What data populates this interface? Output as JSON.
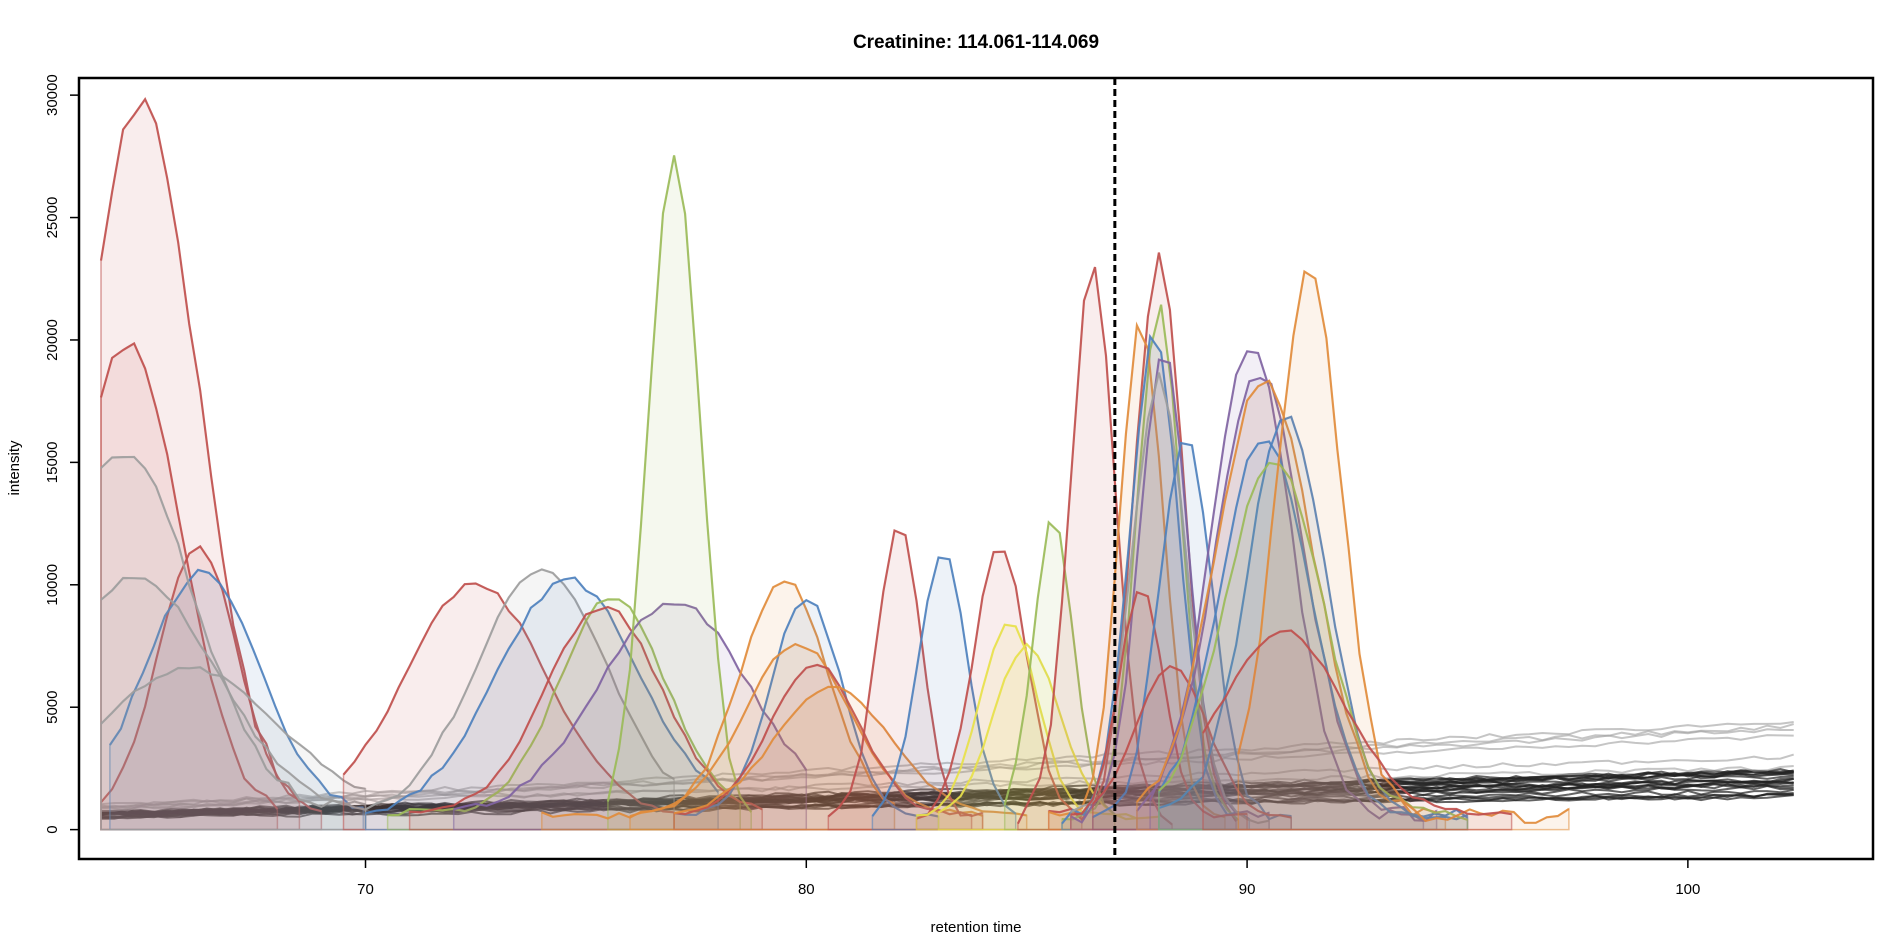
{
  "chart_data": {
    "type": "area",
    "title": "Creatinine: 114.061-114.069",
    "xlabel": "retention time",
    "ylabel": "intensity",
    "xlim": [
      63.5,
      104.2
    ],
    "ylim": [
      -1200,
      30700
    ],
    "x_ticks": [
      70,
      80,
      90,
      100
    ],
    "y_ticks": [
      0,
      5000,
      10000,
      15000,
      20000,
      25000,
      30000
    ],
    "grid": false,
    "legend": "none",
    "vline": {
      "x": 87.0,
      "style": "dashed",
      "color": "#000000"
    },
    "baseline_x_range": [
      64.0,
      102.5
    ],
    "peaks": [
      {
        "color": "#c0504d",
        "x_range": [
          64.0,
          68.5
        ],
        "center": 64.9,
        "width": 1.3,
        "height": 29200,
        "floor": 600
      },
      {
        "color": "#c0504d",
        "x_range": [
          64.0,
          68.0
        ],
        "center": 64.6,
        "width": 1.2,
        "height": 19200,
        "floor": 700
      },
      {
        "color": "#c0504d",
        "x_range": [
          64.0,
          69.0
        ],
        "center": 66.2,
        "width": 0.9,
        "height": 10800,
        "floor": 700
      },
      {
        "color": "#4f81bd",
        "x_range": [
          64.2,
          70.0
        ],
        "center": 66.3,
        "width": 1.3,
        "height": 9800,
        "floor": 700
      },
      {
        "color": "#9e9e9e",
        "x_range": [
          64.0,
          70.0
        ],
        "center": 64.5,
        "width": 1.6,
        "height": 14500,
        "floor": 800
      },
      {
        "color": "#9e9e9e",
        "x_range": [
          64.0,
          70.0
        ],
        "center": 64.8,
        "width": 1.8,
        "height": 9500,
        "floor": 800
      },
      {
        "color": "#9e9e9e",
        "x_range": [
          64.0,
          70.0
        ],
        "center": 66.0,
        "width": 2.0,
        "height": 5800,
        "floor": 800
      },
      {
        "color": "#c0504d",
        "x_range": [
          69.5,
          77.0
        ],
        "center": 72.5,
        "width": 1.6,
        "height": 9400,
        "floor": 600
      },
      {
        "color": "#9e9e9e",
        "x_range": [
          70.0,
          77.0
        ],
        "center": 74.0,
        "width": 1.5,
        "height": 10000,
        "floor": 600
      },
      {
        "color": "#4f81bd",
        "x_range": [
          70.0,
          78.0
        ],
        "center": 74.6,
        "width": 1.6,
        "height": 9600,
        "floor": 600
      },
      {
        "color": "#9bbb59",
        "x_range": [
          70.5,
          78.5
        ],
        "center": 75.6,
        "width": 1.2,
        "height": 8800,
        "floor": 700
      },
      {
        "color": "#c0504d",
        "x_range": [
          71.0,
          79.0
        ],
        "center": 75.4,
        "width": 1.3,
        "height": 8400,
        "floor": 700
      },
      {
        "color": "#8064a2",
        "x_range": [
          72.0,
          80.0
        ],
        "center": 77.0,
        "width": 1.7,
        "height": 8600,
        "floor": 700
      },
      {
        "color": "#9bbb59",
        "x_range": [
          75.5,
          78.8
        ],
        "center": 77.0,
        "width": 0.58,
        "height": 27200,
        "floor": 500
      },
      {
        "color": "#e08c3c",
        "x_range": [
          74.0,
          82.0
        ],
        "center": 79.5,
        "width": 1.0,
        "height": 9600,
        "floor": 600
      },
      {
        "color": "#4f81bd",
        "x_range": [
          77.0,
          83.0
        ],
        "center": 80.0,
        "width": 0.8,
        "height": 8900,
        "floor": 600
      },
      {
        "color": "#e08c3c",
        "x_range": [
          76.0,
          84.0
        ],
        "center": 79.8,
        "width": 1.2,
        "height": 7000,
        "floor": 600
      },
      {
        "color": "#c0504d",
        "x_range": [
          77.0,
          84.0
        ],
        "center": 80.2,
        "width": 1.0,
        "height": 6200,
        "floor": 600
      },
      {
        "color": "#e08c3c",
        "x_range": [
          77.0,
          85.0
        ],
        "center": 80.6,
        "width": 1.3,
        "height": 5200,
        "floor": 600
      },
      {
        "color": "#c0504d",
        "x_range": [
          80.5,
          83.8
        ],
        "center": 82.1,
        "width": 0.5,
        "height": 12000,
        "floor": 500
      },
      {
        "color": "#4f81bd",
        "x_range": [
          81.5,
          84.8
        ],
        "center": 83.1,
        "width": 0.55,
        "height": 10800,
        "floor": 500
      },
      {
        "color": "#c0504d",
        "x_range": [
          82.5,
          86.3
        ],
        "center": 84.4,
        "width": 0.6,
        "height": 11100,
        "floor": 500
      },
      {
        "color": "#e8e04a",
        "x_range": [
          82.5,
          87.5
        ],
        "center": 84.6,
        "width": 0.65,
        "height": 8000,
        "floor": 500
      },
      {
        "color": "#e8e04a",
        "x_range": [
          83.0,
          88.0
        ],
        "center": 85.0,
        "width": 0.75,
        "height": 7000,
        "floor": 500
      },
      {
        "color": "#9bbb59",
        "x_range": [
          84.5,
          87.0
        ],
        "center": 85.6,
        "width": 0.45,
        "height": 12300,
        "floor": 500
      },
      {
        "color": "#c0504d",
        "x_range": [
          84.8,
          88.3
        ],
        "center": 86.5,
        "width": 0.5,
        "height": 22600,
        "floor": 500
      },
      {
        "color": "#c0504d",
        "x_range": [
          85.5,
          89.8
        ],
        "center": 88.0,
        "width": 0.55,
        "height": 23000,
        "floor": 500
      },
      {
        "color": "#9bbb59",
        "x_range": [
          85.8,
          90.0
        ],
        "center": 88.0,
        "width": 0.5,
        "height": 21000,
        "floor": 500
      },
      {
        "color": "#e08c3c",
        "x_range": [
          85.5,
          89.5
        ],
        "center": 87.6,
        "width": 0.5,
        "height": 20200,
        "floor": 500
      },
      {
        "color": "#4f81bd",
        "x_range": [
          85.8,
          90.2
        ],
        "center": 87.9,
        "width": 0.55,
        "height": 19800,
        "floor": 500
      },
      {
        "color": "#8064a2",
        "x_range": [
          86.0,
          90.5
        ],
        "center": 88.1,
        "width": 0.55,
        "height": 19000,
        "floor": 500
      },
      {
        "color": "#9e9e9e",
        "x_range": [
          86.0,
          90.5
        ],
        "center": 88.0,
        "width": 0.6,
        "height": 18000,
        "floor": 500
      },
      {
        "color": "#c0504d",
        "x_range": [
          86.0,
          90.0
        ],
        "center": 87.6,
        "width": 0.5,
        "height": 9500,
        "floor": 500
      },
      {
        "color": "#4f81bd",
        "x_range": [
          86.5,
          91.0
        ],
        "center": 88.6,
        "width": 0.6,
        "height": 15500,
        "floor": 500
      },
      {
        "color": "#c0504d",
        "x_range": [
          86.5,
          91.0
        ],
        "center": 88.3,
        "width": 0.8,
        "height": 6200,
        "floor": 500
      },
      {
        "color": "#8064a2",
        "x_range": [
          87.5,
          94.0
        ],
        "center": 90.1,
        "width": 0.9,
        "height": 19200,
        "floor": 600
      },
      {
        "color": "#8064a2",
        "x_range": [
          87.8,
          94.5
        ],
        "center": 90.3,
        "width": 1.0,
        "height": 18000,
        "floor": 600
      },
      {
        "color": "#e08c3c",
        "x_range": [
          87.5,
          94.5
        ],
        "center": 90.4,
        "width": 1.1,
        "height": 17800,
        "floor": 600
      },
      {
        "color": "#4f81bd",
        "x_range": [
          88.0,
          95.0
        ],
        "center": 90.9,
        "width": 0.9,
        "height": 16200,
        "floor": 600
      },
      {
        "color": "#4f81bd",
        "x_range": [
          88.0,
          95.0
        ],
        "center": 90.4,
        "width": 1.0,
        "height": 15500,
        "floor": 600
      },
      {
        "color": "#9bbb59",
        "x_range": [
          88.0,
          95.0
        ],
        "center": 90.6,
        "width": 1.1,
        "height": 14500,
        "floor": 600
      },
      {
        "color": "#e08c3c",
        "x_range": [
          89.8,
          97.5
        ],
        "center": 91.4,
        "width": 0.75,
        "height": 22100,
        "floor": 600
      },
      {
        "color": "#c0504d",
        "x_range": [
          89.0,
          96.0
        ],
        "center": 90.8,
        "width": 1.4,
        "height": 7500,
        "floor": 600
      }
    ],
    "baselines": [
      {
        "color": "#222222",
        "start": 600,
        "end": 1900,
        "count": 22
      },
      {
        "color": "#9e9e9e",
        "start": 900,
        "end": 3500,
        "count": 6
      }
    ]
  }
}
